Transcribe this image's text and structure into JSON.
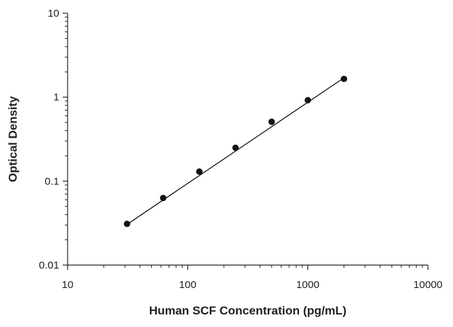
{
  "chart_data": {
    "type": "scatter",
    "title": "",
    "xlabel": "Human SCF Concentration (pg/mL)",
    "ylabel": "Optical Density",
    "x_scale": "log",
    "y_scale": "log",
    "xlim": [
      10,
      10000
    ],
    "ylim": [
      0.01,
      10
    ],
    "x_ticks": [
      "10",
      "100",
      "1000",
      "10000"
    ],
    "y_ticks": [
      "0.01",
      "0.1",
      "1",
      "10"
    ],
    "grid": false,
    "legend": "none",
    "series": [
      {
        "marker_color": "#111111",
        "points": [
          {
            "x": 31.25,
            "y": 0.031
          },
          {
            "x": 62.5,
            "y": 0.063
          },
          {
            "x": 125,
            "y": 0.13
          },
          {
            "x": 250,
            "y": 0.25
          },
          {
            "x": 500,
            "y": 0.51
          },
          {
            "x": 1000,
            "y": 0.92
          },
          {
            "x": 2000,
            "y": 1.65
          }
        ],
        "fit_line": {
          "x": [
            31.25,
            2000
          ],
          "y": [
            0.0305,
            1.7
          ]
        }
      }
    ]
  }
}
